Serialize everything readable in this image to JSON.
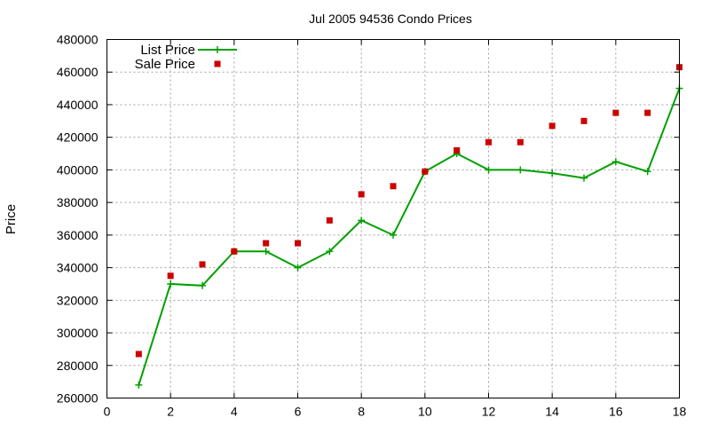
{
  "chart_data": {
    "type": "line",
    "title": "Jul 2005 94536 Condo Prices",
    "ylabel": "Price",
    "xlabel": "",
    "xlim": [
      0,
      18
    ],
    "ylim": [
      260000,
      480000
    ],
    "x_ticks": [
      0,
      2,
      4,
      6,
      8,
      10,
      12,
      14,
      16,
      18
    ],
    "y_ticks": [
      260000,
      280000,
      300000,
      320000,
      340000,
      360000,
      380000,
      400000,
      420000,
      440000,
      460000,
      480000
    ],
    "grid": true,
    "legend_position": "top-left",
    "series": [
      {
        "name": "List Price",
        "style": "linespoints",
        "color": "#00a000",
        "x": [
          1,
          2,
          3,
          4,
          5,
          6,
          7,
          8,
          9,
          10,
          11,
          12,
          13,
          14,
          15,
          16,
          17,
          18
        ],
        "values": [
          268000,
          330000,
          329000,
          350000,
          350000,
          340000,
          350000,
          369000,
          360000,
          399000,
          410000,
          400000,
          400000,
          398000,
          395000,
          405000,
          399000,
          450000
        ]
      },
      {
        "name": "Sale Price",
        "style": "points",
        "color": "#cc0000",
        "x": [
          1,
          2,
          3,
          4,
          5,
          6,
          7,
          8,
          9,
          10,
          11,
          12,
          13,
          14,
          15,
          16,
          17,
          18
        ],
        "values": [
          287000,
          335000,
          342000,
          350000,
          355000,
          355000,
          369000,
          385000,
          390000,
          399000,
          412000,
          417000,
          417000,
          427000,
          430000,
          435000,
          435000,
          463000
        ]
      }
    ]
  }
}
